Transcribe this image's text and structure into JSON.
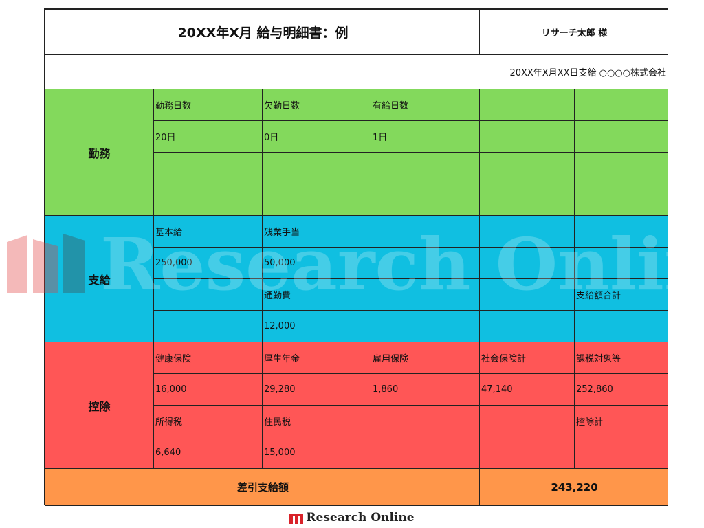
{
  "title": "20XX年X月 給与明細書：例",
  "recipient": "リサーチ太郎 様",
  "issuer_line": "20XX年X月XX日支給 ○○○○株式会社",
  "attendance": {
    "label": "勤務",
    "headers": [
      "勤務日数",
      "欠勤日数",
      "有給日数"
    ],
    "values": [
      "20日",
      "0日",
      "1日"
    ]
  },
  "payment": {
    "label": "支給",
    "base_salary_label": "基本給",
    "overtime_label": "残業手当",
    "base_salary_value": "250,000",
    "overtime_value": "50,000",
    "commute_label": "通勤費",
    "commute_value": "12,000",
    "total_label": "支給額合計"
  },
  "deduction": {
    "label": "控除",
    "row1_headers": [
      "健康保険",
      "厚生年金",
      "雇用保険",
      "社会保険計",
      "課税対象等"
    ],
    "row1_values": [
      "16,000",
      "29,280",
      "1,860",
      "47,140",
      "252,860"
    ],
    "income_tax_label": "所得税",
    "resident_tax_label": "住民税",
    "total_label": "控除計",
    "income_tax_value": "6,640",
    "resident_tax_value": "15,000"
  },
  "net_pay": {
    "label": "差引支給額",
    "value": "243,220"
  },
  "watermark_text": "Research Online",
  "footer_brand": "Research Online",
  "colors": {
    "attendance": "#83d95c",
    "payment": "#10bfe1",
    "deduction": "#ff5656",
    "net_pay": "#ff964a",
    "brand_red": "#d9232a"
  }
}
